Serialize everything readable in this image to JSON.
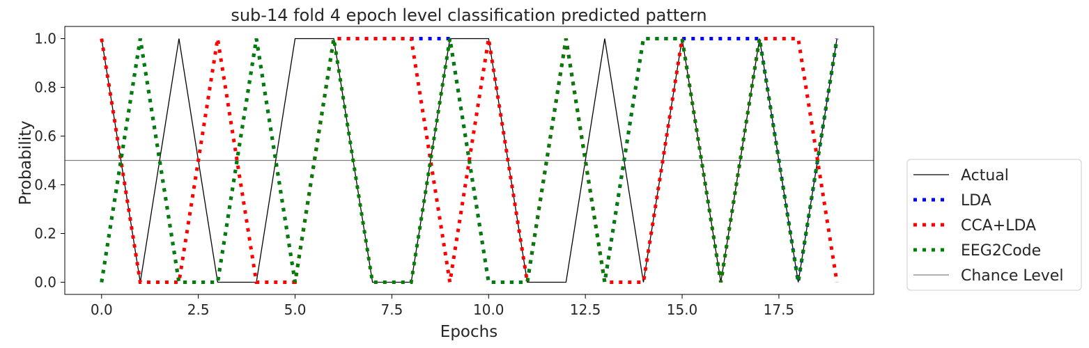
{
  "chart_data": {
    "type": "line",
    "title": "sub-14 fold 4 epoch level classification predicted pattern",
    "xlabel": "Epochs",
    "ylabel": "Probability",
    "xlim": [
      -0.95,
      19.95
    ],
    "ylim": [
      -0.05,
      1.05
    ],
    "xticks": [
      0.0,
      2.5,
      5.0,
      7.5,
      10.0,
      12.5,
      15.0,
      17.5
    ],
    "xtick_labels": [
      "0.0",
      "2.5",
      "5.0",
      "7.5",
      "10.0",
      "12.5",
      "15.0",
      "17.5"
    ],
    "yticks": [
      0.0,
      0.2,
      0.4,
      0.6,
      0.8,
      1.0
    ],
    "ytick_labels": [
      "0.0",
      "0.2",
      "0.4",
      "0.6",
      "0.8",
      "1.0"
    ],
    "grid": false,
    "legend_position": "outside-right-bottom",
    "x": [
      0,
      1,
      2,
      3,
      4,
      5,
      6,
      7,
      8,
      9,
      10,
      11,
      12,
      13,
      14,
      15,
      16,
      17,
      18,
      19
    ],
    "series": [
      {
        "name": "Actual",
        "color": "#000000",
        "style": "solid",
        "values": [
          1,
          0,
          1,
          0,
          0,
          1,
          1,
          0,
          0,
          1,
          1,
          0,
          0,
          1,
          0,
          1,
          0,
          1,
          0,
          1
        ]
      },
      {
        "name": "LDA",
        "color": "#0000ff",
        "style": "dotted",
        "values": [
          0,
          1,
          0,
          0,
          1,
          0,
          1,
          1,
          1,
          1,
          0,
          0,
          1,
          0,
          1,
          1,
          1,
          1,
          0,
          1
        ]
      },
      {
        "name": "CCA+LDA",
        "color": "#ff0000",
        "style": "dotted",
        "values": [
          1,
          0,
          0,
          1,
          0,
          0,
          1,
          1,
          1,
          0,
          1,
          0,
          1,
          0,
          0,
          1,
          0,
          1,
          1,
          0
        ]
      },
      {
        "name": "EEG2Code",
        "color": "#008000",
        "style": "dotted",
        "values": [
          0,
          1,
          0,
          0,
          1,
          0,
          1,
          0,
          0,
          1,
          0,
          0,
          1,
          0,
          1,
          1,
          0,
          1,
          0,
          1
        ]
      },
      {
        "name": "Chance Level",
        "color": "#808080",
        "style": "solid",
        "constant": 0.5
      }
    ]
  }
}
